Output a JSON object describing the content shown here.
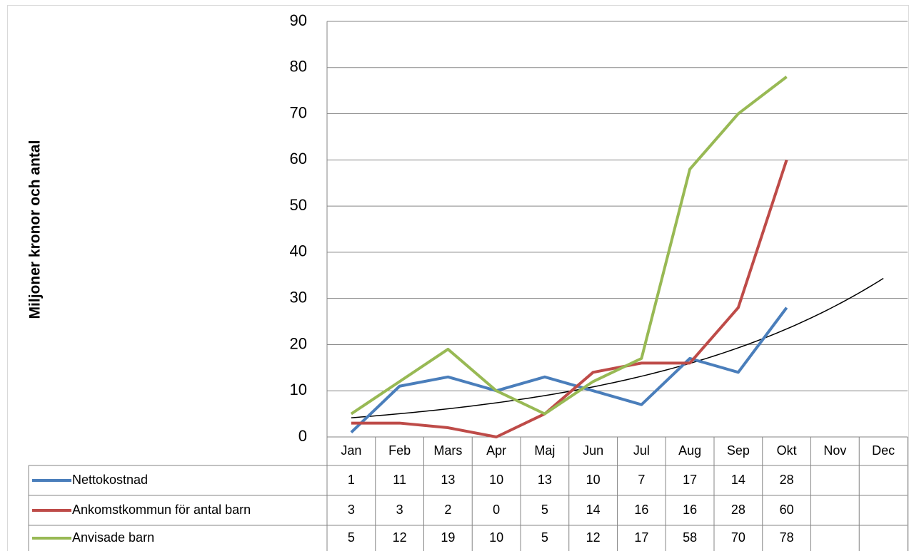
{
  "chart_data": {
    "type": "line",
    "y_label": "Miljoner kronor och antal",
    "categories": [
      "Jan",
      "Feb",
      "Mars",
      "Apr",
      "Maj",
      "Jun",
      "Jul",
      "Aug",
      "Sep",
      "Okt",
      "Nov",
      "Dec"
    ],
    "series": [
      {
        "name": "Nettokostnad",
        "color": "#4a7ebb",
        "values": [
          1,
          11,
          13,
          10,
          13,
          10,
          7,
          17,
          14,
          28,
          null,
          null
        ]
      },
      {
        "name": "Ankomstkommun för antal barn",
        "color": "#be4b48",
        "values": [
          3,
          3,
          2,
          0,
          5,
          14,
          16,
          16,
          28,
          60,
          null,
          null
        ]
      },
      {
        "name": "Anvisade barn",
        "color": "#98b954",
        "values": [
          5,
          12,
          19,
          10,
          5,
          12,
          17,
          58,
          70,
          78,
          null,
          null
        ]
      }
    ],
    "trendline": {
      "type": "exponential",
      "series": 0,
      "color": "#000000"
    },
    "ylim": [
      0,
      90
    ],
    "yticks": [
      0,
      10,
      20,
      30,
      40,
      50,
      60,
      70,
      80,
      90
    ],
    "grid": true,
    "data_table": true
  }
}
